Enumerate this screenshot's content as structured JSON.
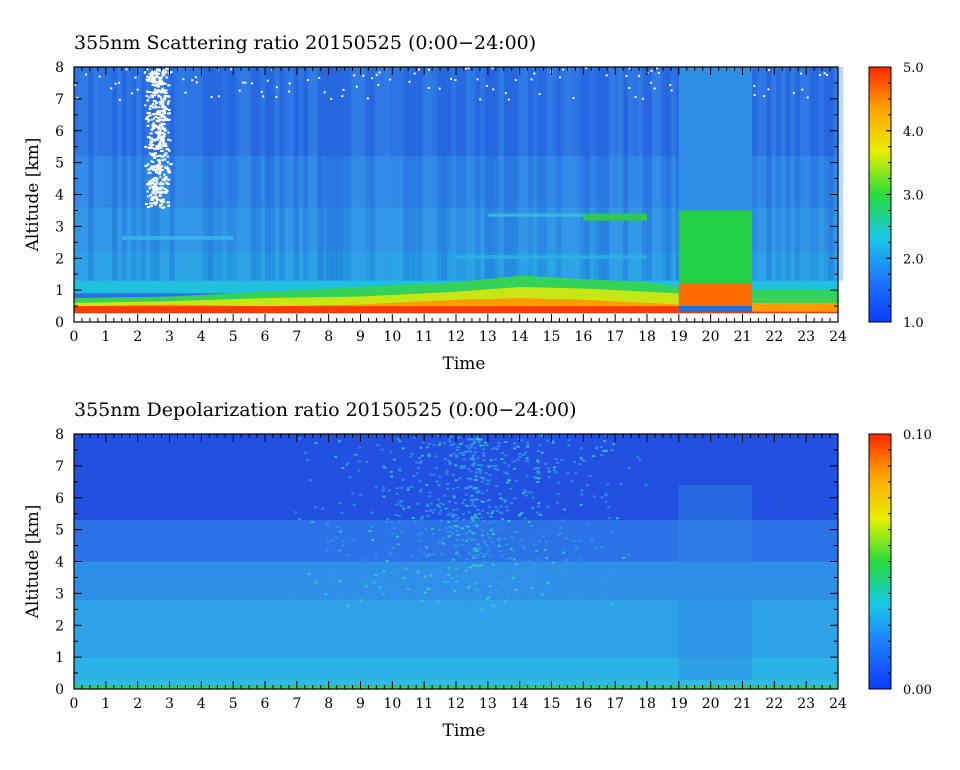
{
  "chart_data": [
    {
      "type": "heatmap",
      "title": "355nm Scattering ratio  20150525 (0:00−24:00)",
      "xlabel": "Time",
      "ylabel": "Altitude [km]",
      "xlim": [
        0,
        24
      ],
      "ylim": [
        0,
        8
      ],
      "x_ticks": [
        "0",
        "1",
        "2",
        "3",
        "4",
        "5",
        "6",
        "7",
        "8",
        "9",
        "10",
        "11",
        "12",
        "13",
        "14",
        "15",
        "16",
        "17",
        "18",
        "19",
        "20",
        "21",
        "22",
        "23",
        "24"
      ],
      "y_ticks": [
        "0",
        "1",
        "2",
        "3",
        "4",
        "5",
        "6",
        "7",
        "8"
      ],
      "colorbar": {
        "range": [
          1.0,
          5.0
        ],
        "tick_values": [
          1.0,
          2.0,
          3.0,
          4.0,
          5.0
        ],
        "tick_labels": [
          "1.0",
          "2.0",
          "3.0",
          "4.0",
          "5.0"
        ],
        "colors": [
          "#0a3cff",
          "#1e78ff",
          "#19c8e6",
          "#28dc3c",
          "#e6f000",
          "#ffa500",
          "#ff2800"
        ]
      },
      "features": [
        {
          "time": [
            0,
            19
          ],
          "altitude": [
            0.3,
            1.4
          ],
          "value": 3.0
        },
        {
          "time": [
            19,
            21.3
          ],
          "altitude": [
            0.0,
            3.5
          ],
          "value": 2.8
        },
        {
          "time": [
            19,
            21.3
          ],
          "altitude": [
            0.5,
            1.2
          ],
          "value": 4.6
        },
        {
          "time": [
            16,
            18
          ],
          "altitude": [
            3.2,
            3.4
          ],
          "value": 2.9
        },
        {
          "time": [
            2.5,
            3.0
          ],
          "altitude": [
            3.6,
            8.0
          ],
          "value": "missing"
        }
      ]
    },
    {
      "type": "heatmap",
      "title": "355nm Depolarization ratio  20150525 (0:00−24:00)",
      "xlabel": "Time",
      "ylabel": "Altitude [km]",
      "xlim": [
        0,
        24
      ],
      "ylim": [
        0,
        8
      ],
      "x_ticks": [
        "0",
        "1",
        "2",
        "3",
        "4",
        "5",
        "6",
        "7",
        "8",
        "9",
        "10",
        "11",
        "12",
        "13",
        "14",
        "15",
        "16",
        "17",
        "18",
        "19",
        "20",
        "21",
        "22",
        "23",
        "24"
      ],
      "y_ticks": [
        "0",
        "1",
        "2",
        "3",
        "4",
        "5",
        "6",
        "7",
        "8"
      ],
      "colorbar": {
        "range": [
          0.0,
          0.1
        ],
        "tick_values": [
          0.0,
          0.1
        ],
        "tick_labels": [
          "0.00",
          "0.10"
        ],
        "colors": [
          "#0a3cff",
          "#1e78ff",
          "#19c8e6",
          "#28dc3c",
          "#e6f000",
          "#ffa500",
          "#ff2800"
        ]
      },
      "features": [
        {
          "time": [
            0,
            24
          ],
          "altitude": [
            0.0,
            0.1
          ],
          "value": 0.04
        },
        {
          "time": [
            0,
            24
          ],
          "altitude": [
            0.1,
            4.0
          ],
          "value": 0.02
        },
        {
          "time": [
            9,
            15
          ],
          "altitude": [
            4.0,
            8.0
          ],
          "value": 0.03
        }
      ]
    }
  ]
}
